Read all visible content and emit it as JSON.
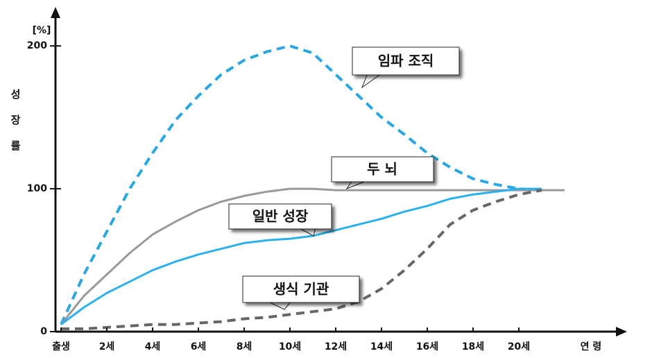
{
  "chart_data": {
    "type": "line",
    "y_label": "성장률",
    "y_unit": "[%]",
    "x_label": "연 령",
    "x": [
      0,
      1,
      2,
      3,
      4,
      5,
      6,
      7,
      8,
      9,
      10,
      11,
      12,
      13,
      14,
      15,
      16,
      17,
      18,
      19,
      20,
      21,
      22
    ],
    "xlim": [
      0,
      24
    ],
    "xticks": [
      {
        "value": 0,
        "label": "출생"
      },
      {
        "value": 2,
        "label": "2세"
      },
      {
        "value": 4,
        "label": "4세"
      },
      {
        "value": 6,
        "label": "6세"
      },
      {
        "value": 8,
        "label": "8세"
      },
      {
        "value": 10,
        "label": "10세"
      },
      {
        "value": 12,
        "label": "12세"
      },
      {
        "value": 14,
        "label": "14세"
      },
      {
        "value": 16,
        "label": "16세"
      },
      {
        "value": 18,
        "label": "18세"
      },
      {
        "value": 20,
        "label": "20세"
      }
    ],
    "ylim": [
      0,
      220
    ],
    "yticks": [
      0,
      100,
      200
    ],
    "series": [
      {
        "name": "임파 조직",
        "color": "#2aa6e0",
        "dashed": true,
        "values": [
          5,
          40,
          70,
          100,
          125,
          148,
          165,
          180,
          190,
          196,
          200,
          195,
          180,
          165,
          150,
          138,
          125,
          115,
          107,
          103,
          100,
          99,
          null
        ]
      },
      {
        "name": "두 뇌",
        "color": "#999999",
        "dashed": false,
        "values": [
          5,
          25,
          40,
          55,
          68,
          77,
          85,
          91,
          95,
          98,
          100,
          100,
          99,
          99,
          99,
          99,
          99,
          99,
          99,
          99,
          99,
          99,
          99
        ]
      },
      {
        "name": "일반 성장",
        "color": "#2ab0ea",
        "dashed": false,
        "values": [
          5,
          17,
          27,
          35,
          43,
          49,
          54,
          58,
          62,
          64,
          65,
          67,
          71,
          75,
          79,
          84,
          88,
          93,
          96,
          98,
          100,
          100,
          null
        ]
      },
      {
        "name": "생식 기관",
        "color": "#666666",
        "dashed": true,
        "values": [
          2,
          2,
          3,
          4,
          5,
          5,
          6,
          7,
          9,
          10,
          12,
          14,
          16,
          21,
          30,
          43,
          58,
          75,
          85,
          91,
          96,
          99,
          null
        ]
      }
    ]
  }
}
